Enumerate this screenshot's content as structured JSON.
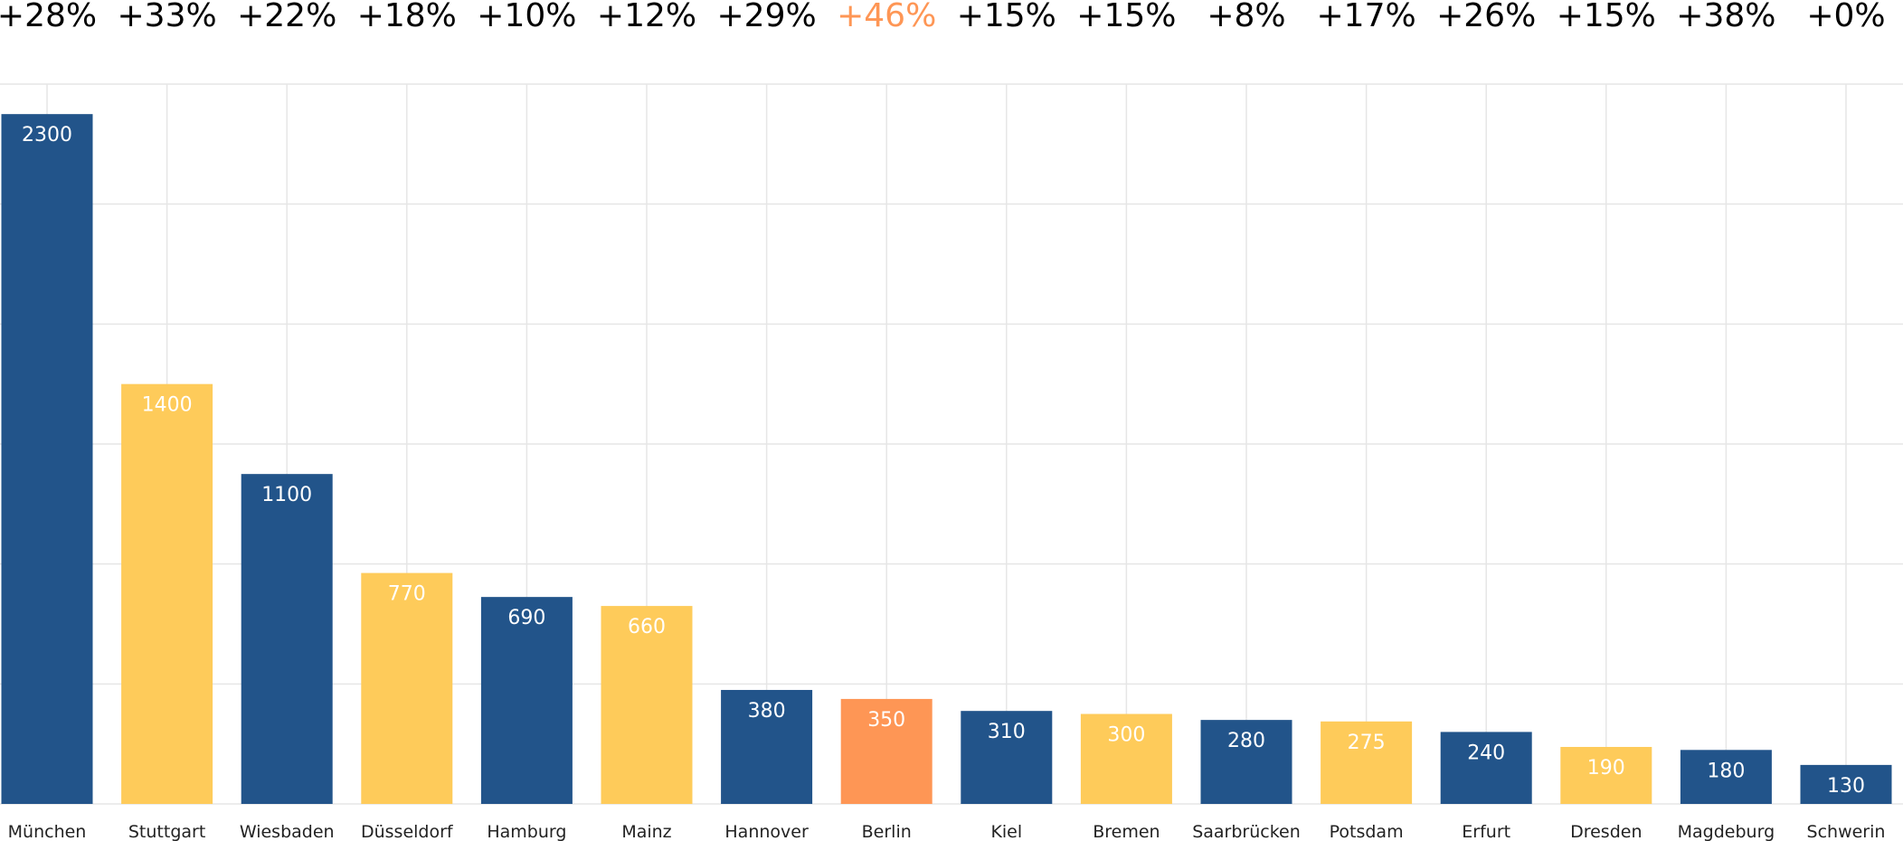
{
  "chart_data": {
    "type": "bar",
    "categories": [
      "München",
      "Stuttgart",
      "Wiesbaden",
      "Düsseldorf",
      "Hamburg",
      "Mainz",
      "Hannover",
      "Berlin",
      "Kiel",
      "Bremen",
      "Saarbrücken",
      "Potsdam",
      "Erfurt",
      "Dresden",
      "Magdeburg",
      "Schwerin"
    ],
    "values": [
      2300,
      1400,
      1100,
      770,
      690,
      660,
      380,
      350,
      310,
      300,
      280,
      275,
      240,
      190,
      180,
      130
    ],
    "value_labels": [
      "2300",
      "1400",
      "1100",
      "770",
      "690",
      "660",
      "380",
      "350",
      "310",
      "300",
      "280",
      "275",
      "240",
      "190",
      "180",
      "130"
    ],
    "change_labels": [
      "+28%",
      "+33%",
      "+22%",
      "+18%",
      "+10%",
      "+12%",
      "+29%",
      "+46%",
      "+15%",
      "+15%",
      "+8%",
      "+17%",
      "+26%",
      "+15%",
      "+38%",
      "+0%"
    ],
    "bar_colors": [
      "#22548a",
      "#fecb5a",
      "#22548a",
      "#fecb5a",
      "#22548a",
      "#fecb5a",
      "#22548a",
      "#fe9655",
      "#22548a",
      "#fecb5a",
      "#22548a",
      "#fecb5a",
      "#22548a",
      "#fecb5a",
      "#22548a",
      "#22548a"
    ],
    "change_colors": [
      "#000000",
      "#000000",
      "#000000",
      "#000000",
      "#000000",
      "#000000",
      "#000000",
      "#fe9655",
      "#000000",
      "#000000",
      "#000000",
      "#000000",
      "#000000",
      "#000000",
      "#000000",
      "#000000"
    ],
    "title": "",
    "xlabel": "",
    "ylabel": "",
    "ylim": [
      0,
      2400
    ],
    "grid": true
  }
}
